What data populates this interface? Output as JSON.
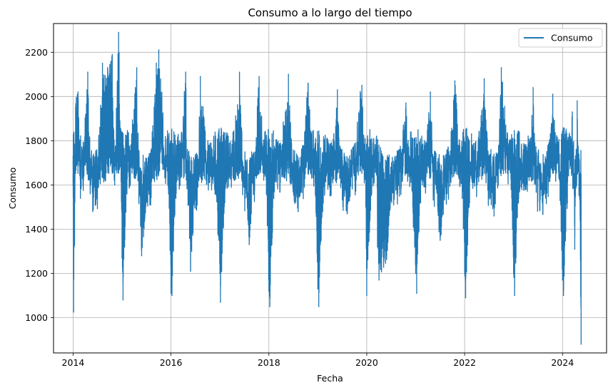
{
  "chart_data": {
    "type": "line",
    "title": "Consumo a lo largo del tiempo",
    "xlabel": "Fecha",
    "ylabel": "Consumo",
    "xlim": [
      2013.6,
      2024.9
    ],
    "ylim": [
      840,
      2330
    ],
    "x_ticks": [
      2014,
      2016,
      2018,
      2020,
      2022,
      2024
    ],
    "x_tick_labels": [
      "2014",
      "2016",
      "2018",
      "2020",
      "2022",
      "2024"
    ],
    "y_ticks": [
      1000,
      1200,
      1400,
      1600,
      1800,
      2000,
      2200
    ],
    "y_tick_labels": [
      "1000",
      "1200",
      "1400",
      "1600",
      "1800",
      "2000",
      "2200"
    ],
    "grid": true,
    "legend_position": "top-right",
    "series": [
      {
        "name": "Consumo",
        "color": "#1f77b4",
        "x_start": 2014.0,
        "x_end": 2024.38,
        "points": [
          [
            2014.0,
            1600
          ],
          [
            2014.01,
            1025
          ],
          [
            2014.03,
            1330
          ],
          [
            2014.05,
            1950
          ],
          [
            2014.1,
            2020
          ],
          [
            2014.15,
            1540
          ],
          [
            2014.3,
            2110
          ],
          [
            2014.4,
            1480
          ],
          [
            2014.6,
            2150
          ],
          [
            2014.8,
            2190
          ],
          [
            2014.85,
            1600
          ],
          [
            2014.93,
            2290
          ],
          [
            2015.0,
            1270
          ],
          [
            2015.02,
            1080
          ],
          [
            2015.1,
            1560
          ],
          [
            2015.3,
            2130
          ],
          [
            2015.4,
            1280
          ],
          [
            2015.7,
            2150
          ],
          [
            2015.75,
            2210
          ],
          [
            2015.95,
            1560
          ],
          [
            2016.0,
            1110
          ],
          [
            2016.02,
            1100
          ],
          [
            2016.1,
            1540
          ],
          [
            2016.3,
            2110
          ],
          [
            2016.4,
            1210
          ],
          [
            2016.6,
            2090
          ],
          [
            2016.9,
            1560
          ],
          [
            2017.0,
            1200
          ],
          [
            2017.01,
            1070
          ],
          [
            2017.1,
            1520
          ],
          [
            2017.4,
            2110
          ],
          [
            2017.6,
            1350
          ],
          [
            2017.8,
            2090
          ],
          [
            2017.95,
            1560
          ],
          [
            2018.0,
            1120
          ],
          [
            2018.02,
            1050
          ],
          [
            2018.1,
            1540
          ],
          [
            2018.4,
            2100
          ],
          [
            2018.6,
            1480
          ],
          [
            2018.8,
            2060
          ],
          [
            2018.95,
            1560
          ],
          [
            2019.0,
            1130
          ],
          [
            2019.02,
            1050
          ],
          [
            2019.1,
            1480
          ],
          [
            2019.4,
            2030
          ],
          [
            2019.6,
            1470
          ],
          [
            2019.9,
            2050
          ],
          [
            2019.98,
            1500
          ],
          [
            2020.0,
            1100
          ],
          [
            2020.1,
            1560
          ],
          [
            2020.2,
            1820
          ],
          [
            2020.22,
            1320
          ],
          [
            2020.25,
            1170
          ],
          [
            2020.3,
            1220
          ],
          [
            2020.4,
            1290
          ],
          [
            2020.5,
            1560
          ],
          [
            2020.6,
            1650
          ],
          [
            2020.8,
            1970
          ],
          [
            2021.0,
            1200
          ],
          [
            2021.02,
            1110
          ],
          [
            2021.1,
            1520
          ],
          [
            2021.3,
            2020
          ],
          [
            2021.5,
            1350
          ],
          [
            2021.8,
            2070
          ],
          [
            2021.95,
            1540
          ],
          [
            2022.0,
            1200
          ],
          [
            2022.02,
            1090
          ],
          [
            2022.1,
            1520
          ],
          [
            2022.4,
            2080
          ],
          [
            2022.6,
            1460
          ],
          [
            2022.75,
            2130
          ],
          [
            2022.95,
            1580
          ],
          [
            2023.0,
            1200
          ],
          [
            2023.02,
            1100
          ],
          [
            2023.1,
            1520
          ],
          [
            2023.4,
            2040
          ],
          [
            2023.6,
            1470
          ],
          [
            2023.8,
            2010
          ],
          [
            2023.95,
            1530
          ],
          [
            2024.0,
            1170
          ],
          [
            2024.02,
            1100
          ],
          [
            2024.1,
            1520
          ],
          [
            2024.2,
            1930
          ],
          [
            2024.25,
            1310
          ],
          [
            2024.3,
            1980
          ],
          [
            2024.36,
            1470
          ],
          [
            2024.38,
            880
          ]
        ]
      }
    ]
  }
}
